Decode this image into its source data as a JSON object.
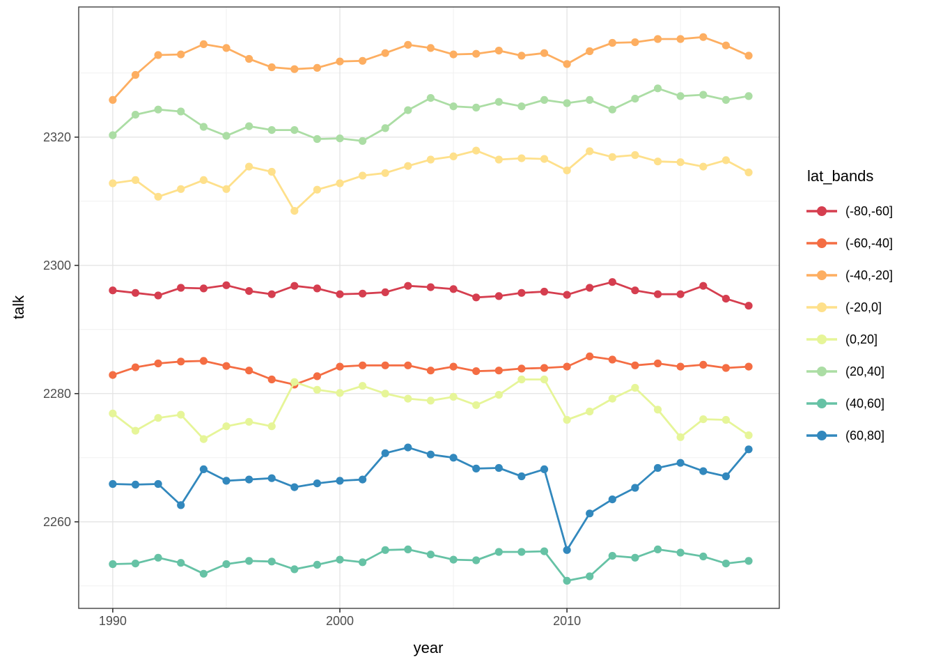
{
  "axes": {
    "x": {
      "label": "year",
      "ticks": [
        1990,
        2000,
        2010
      ],
      "minor_ticks": [
        1995,
        2005,
        2015
      ]
    },
    "y": {
      "label": "talk",
      "ticks": [
        2260,
        2280,
        2300,
        2320
      ],
      "minor_ticks": [
        2250,
        2270,
        2290,
        2310,
        2330
      ]
    }
  },
  "legend": {
    "title": "lat_bands"
  },
  "style": {
    "grid_major_color": "#e3e3e3",
    "grid_minor_color": "#f0f0f0",
    "panel_border_color": "#404040",
    "tick_color": "#333333",
    "tick_label_color": "#4d4d4d",
    "background": "#ffffff"
  },
  "chart_data": {
    "type": "line",
    "title": "",
    "xlabel": "year",
    "ylabel": "talk",
    "grid": true,
    "legend_position": "right",
    "xlim": [
      1988.5,
      2019.35
    ],
    "ylim": [
      2246.5,
      2340.3
    ],
    "x": [
      1990,
      1991,
      1992,
      1993,
      1994,
      1995,
      1996,
      1997,
      1998,
      1999,
      2000,
      2001,
      2002,
      2003,
      2004,
      2005,
      2006,
      2007,
      2008,
      2009,
      2010,
      2011,
      2012,
      2013,
      2014,
      2015,
      2016,
      2017,
      2018
    ],
    "series": [
      {
        "name": "(-80,-60]",
        "color": "#d53e4f",
        "values": [
          2296.1,
          2295.7,
          2295.3,
          2296.5,
          2296.4,
          2296.9,
          2296.0,
          2295.5,
          2296.8,
          2296.4,
          2295.5,
          2295.6,
          2295.8,
          2296.8,
          2296.6,
          2296.3,
          2295.0,
          2295.2,
          2295.7,
          2295.9,
          2295.4,
          2296.5,
          2297.4,
          2296.1,
          2295.5,
          2295.5,
          2296.8,
          2294.8,
          2293.7
        ]
      },
      {
        "name": "(-60,-40]",
        "color": "#f46d43",
        "values": [
          2282.9,
          2284.1,
          2284.7,
          2285.0,
          2285.1,
          2284.3,
          2283.6,
          2282.2,
          2281.4,
          2282.7,
          2284.2,
          2284.4,
          2284.4,
          2284.4,
          2283.6,
          2284.2,
          2283.5,
          2283.6,
          2283.9,
          2284.0,
          2284.2,
          2285.8,
          2285.3,
          2284.4,
          2284.7,
          2284.2,
          2284.5,
          2284.0,
          2284.2
        ]
      },
      {
        "name": "(-40,-20]",
        "color": "#fdae61",
        "values": [
          2325.8,
          2329.7,
          2332.8,
          2332.9,
          2334.5,
          2333.9,
          2332.2,
          2330.9,
          2330.6,
          2330.8,
          2331.8,
          2331.9,
          2333.1,
          2334.4,
          2333.9,
          2332.9,
          2333.0,
          2333.5,
          2332.7,
          2333.1,
          2331.4,
          2333.4,
          2334.7,
          2334.8,
          2335.3,
          2335.3,
          2335.6,
          2334.3,
          2332.7
        ]
      },
      {
        "name": "(-20,0]",
        "color": "#fee08b",
        "values": [
          2312.8,
          2313.3,
          2310.7,
          2311.9,
          2313.3,
          2311.9,
          2315.4,
          2314.6,
          2308.5,
          2311.8,
          2312.8,
          2314.0,
          2314.4,
          2315.5,
          2316.5,
          2317.0,
          2317.9,
          2316.5,
          2316.7,
          2316.6,
          2314.8,
          2317.8,
          2316.9,
          2317.2,
          2316.2,
          2316.1,
          2315.4,
          2316.4,
          2314.5
        ]
      },
      {
        "name": "(0,20]",
        "color": "#e6f598",
        "values": [
          2276.9,
          2274.2,
          2276.2,
          2276.7,
          2272.9,
          2274.9,
          2275.6,
          2274.9,
          2281.8,
          2280.6,
          2280.1,
          2281.2,
          2280.0,
          2279.2,
          2278.9,
          2279.5,
          2278.2,
          2279.8,
          2282.2,
          2282.2,
          2275.9,
          2277.2,
          2279.2,
          2280.9,
          2277.5,
          2273.2,
          2276.0,
          2275.9,
          2273.5
        ]
      },
      {
        "name": "(20,40]",
        "color": "#abdda4",
        "values": [
          2320.3,
          2323.5,
          2324.3,
          2324.0,
          2321.6,
          2320.2,
          2321.7,
          2321.1,
          2321.1,
          2319.7,
          2319.8,
          2319.4,
          2321.4,
          2324.2,
          2326.1,
          2324.8,
          2324.6,
          2325.5,
          2324.8,
          2325.8,
          2325.3,
          2325.8,
          2324.3,
          2326.0,
          2327.6,
          2326.4,
          2326.6,
          2325.8,
          2326.4
        ]
      },
      {
        "name": "(40,60]",
        "color": "#66c2a5",
        "values": [
          2253.4,
          2253.5,
          2254.4,
          2253.6,
          2251.9,
          2253.4,
          2253.9,
          2253.8,
          2252.6,
          2253.3,
          2254.1,
          2253.7,
          2255.6,
          2255.7,
          2254.9,
          2254.1,
          2254.0,
          2255.3,
          2255.3,
          2255.4,
          2250.8,
          2251.5,
          2254.7,
          2254.4,
          2255.7,
          2255.2,
          2254.6,
          2253.5,
          2253.9
        ]
      },
      {
        "name": "(60,80]",
        "color": "#3288bd",
        "values": [
          2265.9,
          2265.8,
          2265.9,
          2262.6,
          2268.2,
          2266.4,
          2266.6,
          2266.8,
          2265.4,
          2266.0,
          2266.4,
          2266.6,
          2270.7,
          2271.6,
          2270.5,
          2270.0,
          2268.3,
          2268.4,
          2267.1,
          2268.2,
          2255.6,
          2261.3,
          2263.5,
          2265.3,
          2268.4,
          2269.2,
          2267.9,
          2267.1,
          2271.3
        ]
      }
    ]
  }
}
